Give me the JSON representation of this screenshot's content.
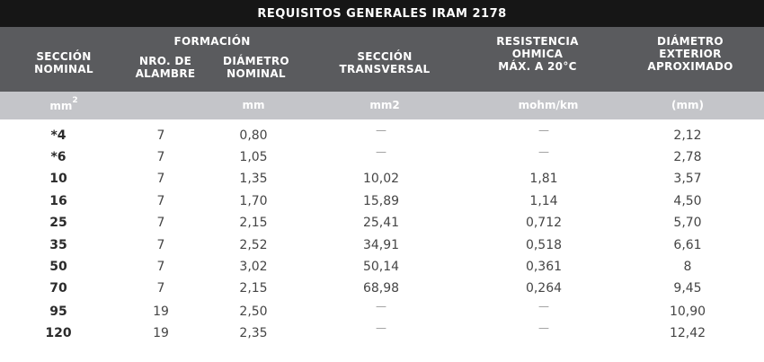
{
  "title": "REQUISITOS GENERALES IRAM 2178",
  "headers": {
    "seccion_nominal": [
      "SECCIÓN",
      "NOMINAL"
    ],
    "formacion": "FORMACIÓN",
    "nro_alambre": [
      "NRO. DE",
      "ALAMBRE"
    ],
    "diametro_nominal": [
      "DIÁMETRO",
      "NOMINAL"
    ],
    "seccion_transversal": [
      "SECCIÓN",
      "TRANSVERSAL"
    ],
    "resistencia": [
      "RESISTENCIA",
      "OHMICA",
      "MÁX. A 20°C"
    ],
    "diametro_exterior": [
      "DIÁMETRO",
      "EXTERIOR",
      "APROXIMADO"
    ]
  },
  "units": {
    "seccion_nominal_base": "mm",
    "seccion_nominal_exp": "2",
    "diametro_nominal": "mm",
    "seccion_transversal": "mm2",
    "resistencia": "mohm/km",
    "diametro_exterior": "(mm)"
  },
  "rows": [
    {
      "seccion": "*4",
      "alambres": "7",
      "diametro": "0,80",
      "transversal": "—",
      "resistencia": "—",
      "exterior": "2,12"
    },
    {
      "seccion": "*6",
      "alambres": "7",
      "diametro": "1,05",
      "transversal": "—",
      "resistencia": "—",
      "exterior": "2,78"
    },
    {
      "seccion": "10",
      "alambres": "7",
      "diametro": "1,35",
      "transversal": "10,02",
      "resistencia": "1,81",
      "exterior": "3,57"
    },
    {
      "seccion": "16",
      "alambres": "7",
      "diametro": "1,70",
      "transversal": "15,89",
      "resistencia": "1,14",
      "exterior": "4,50"
    },
    {
      "seccion": "25",
      "alambres": "7",
      "diametro": "2,15",
      "transversal": "25,41",
      "resistencia": "0,712",
      "exterior": "5,70"
    },
    {
      "seccion": "35",
      "alambres": "7",
      "diametro": "2,52",
      "transversal": "34,91",
      "resistencia": "0,518",
      "exterior": "6,61"
    },
    {
      "seccion": "50",
      "alambres": "7",
      "diametro": "3,02",
      "transversal": "50,14",
      "resistencia": "0,361",
      "exterior": "8"
    },
    {
      "seccion": "70",
      "alambres": "7",
      "diametro": "2,15",
      "transversal": "68,98",
      "resistencia": "0,264",
      "exterior": "9,45"
    },
    {
      "seccion": "95",
      "alambres": "19",
      "diametro": "2,50",
      "transversal": "—",
      "resistencia": "—",
      "exterior": "10,90"
    },
    {
      "seccion": "120",
      "alambres": "19",
      "diametro": "2,35",
      "transversal": "—",
      "resistencia": "—",
      "exterior": "12,42"
    }
  ],
  "colors": {
    "title_bg": "#161616",
    "header_bg": "#5a5b5e",
    "units_bg": "#c4c5c9",
    "text": "#454545"
  }
}
